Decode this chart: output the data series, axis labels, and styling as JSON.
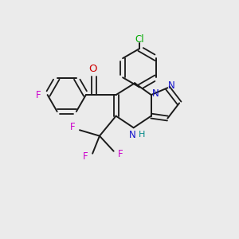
{
  "background_color": "#ebebeb",
  "bond_color": "#1a1a1a",
  "atoms": {
    "Cl": {
      "color": "#00aa00"
    },
    "F": {
      "color": "#cc00cc"
    },
    "N": {
      "color": "#1111cc"
    },
    "H": {
      "color": "#008888"
    },
    "O": {
      "color": "#cc0000"
    }
  },
  "figsize": [
    3.0,
    3.0
  ],
  "dpi": 100
}
